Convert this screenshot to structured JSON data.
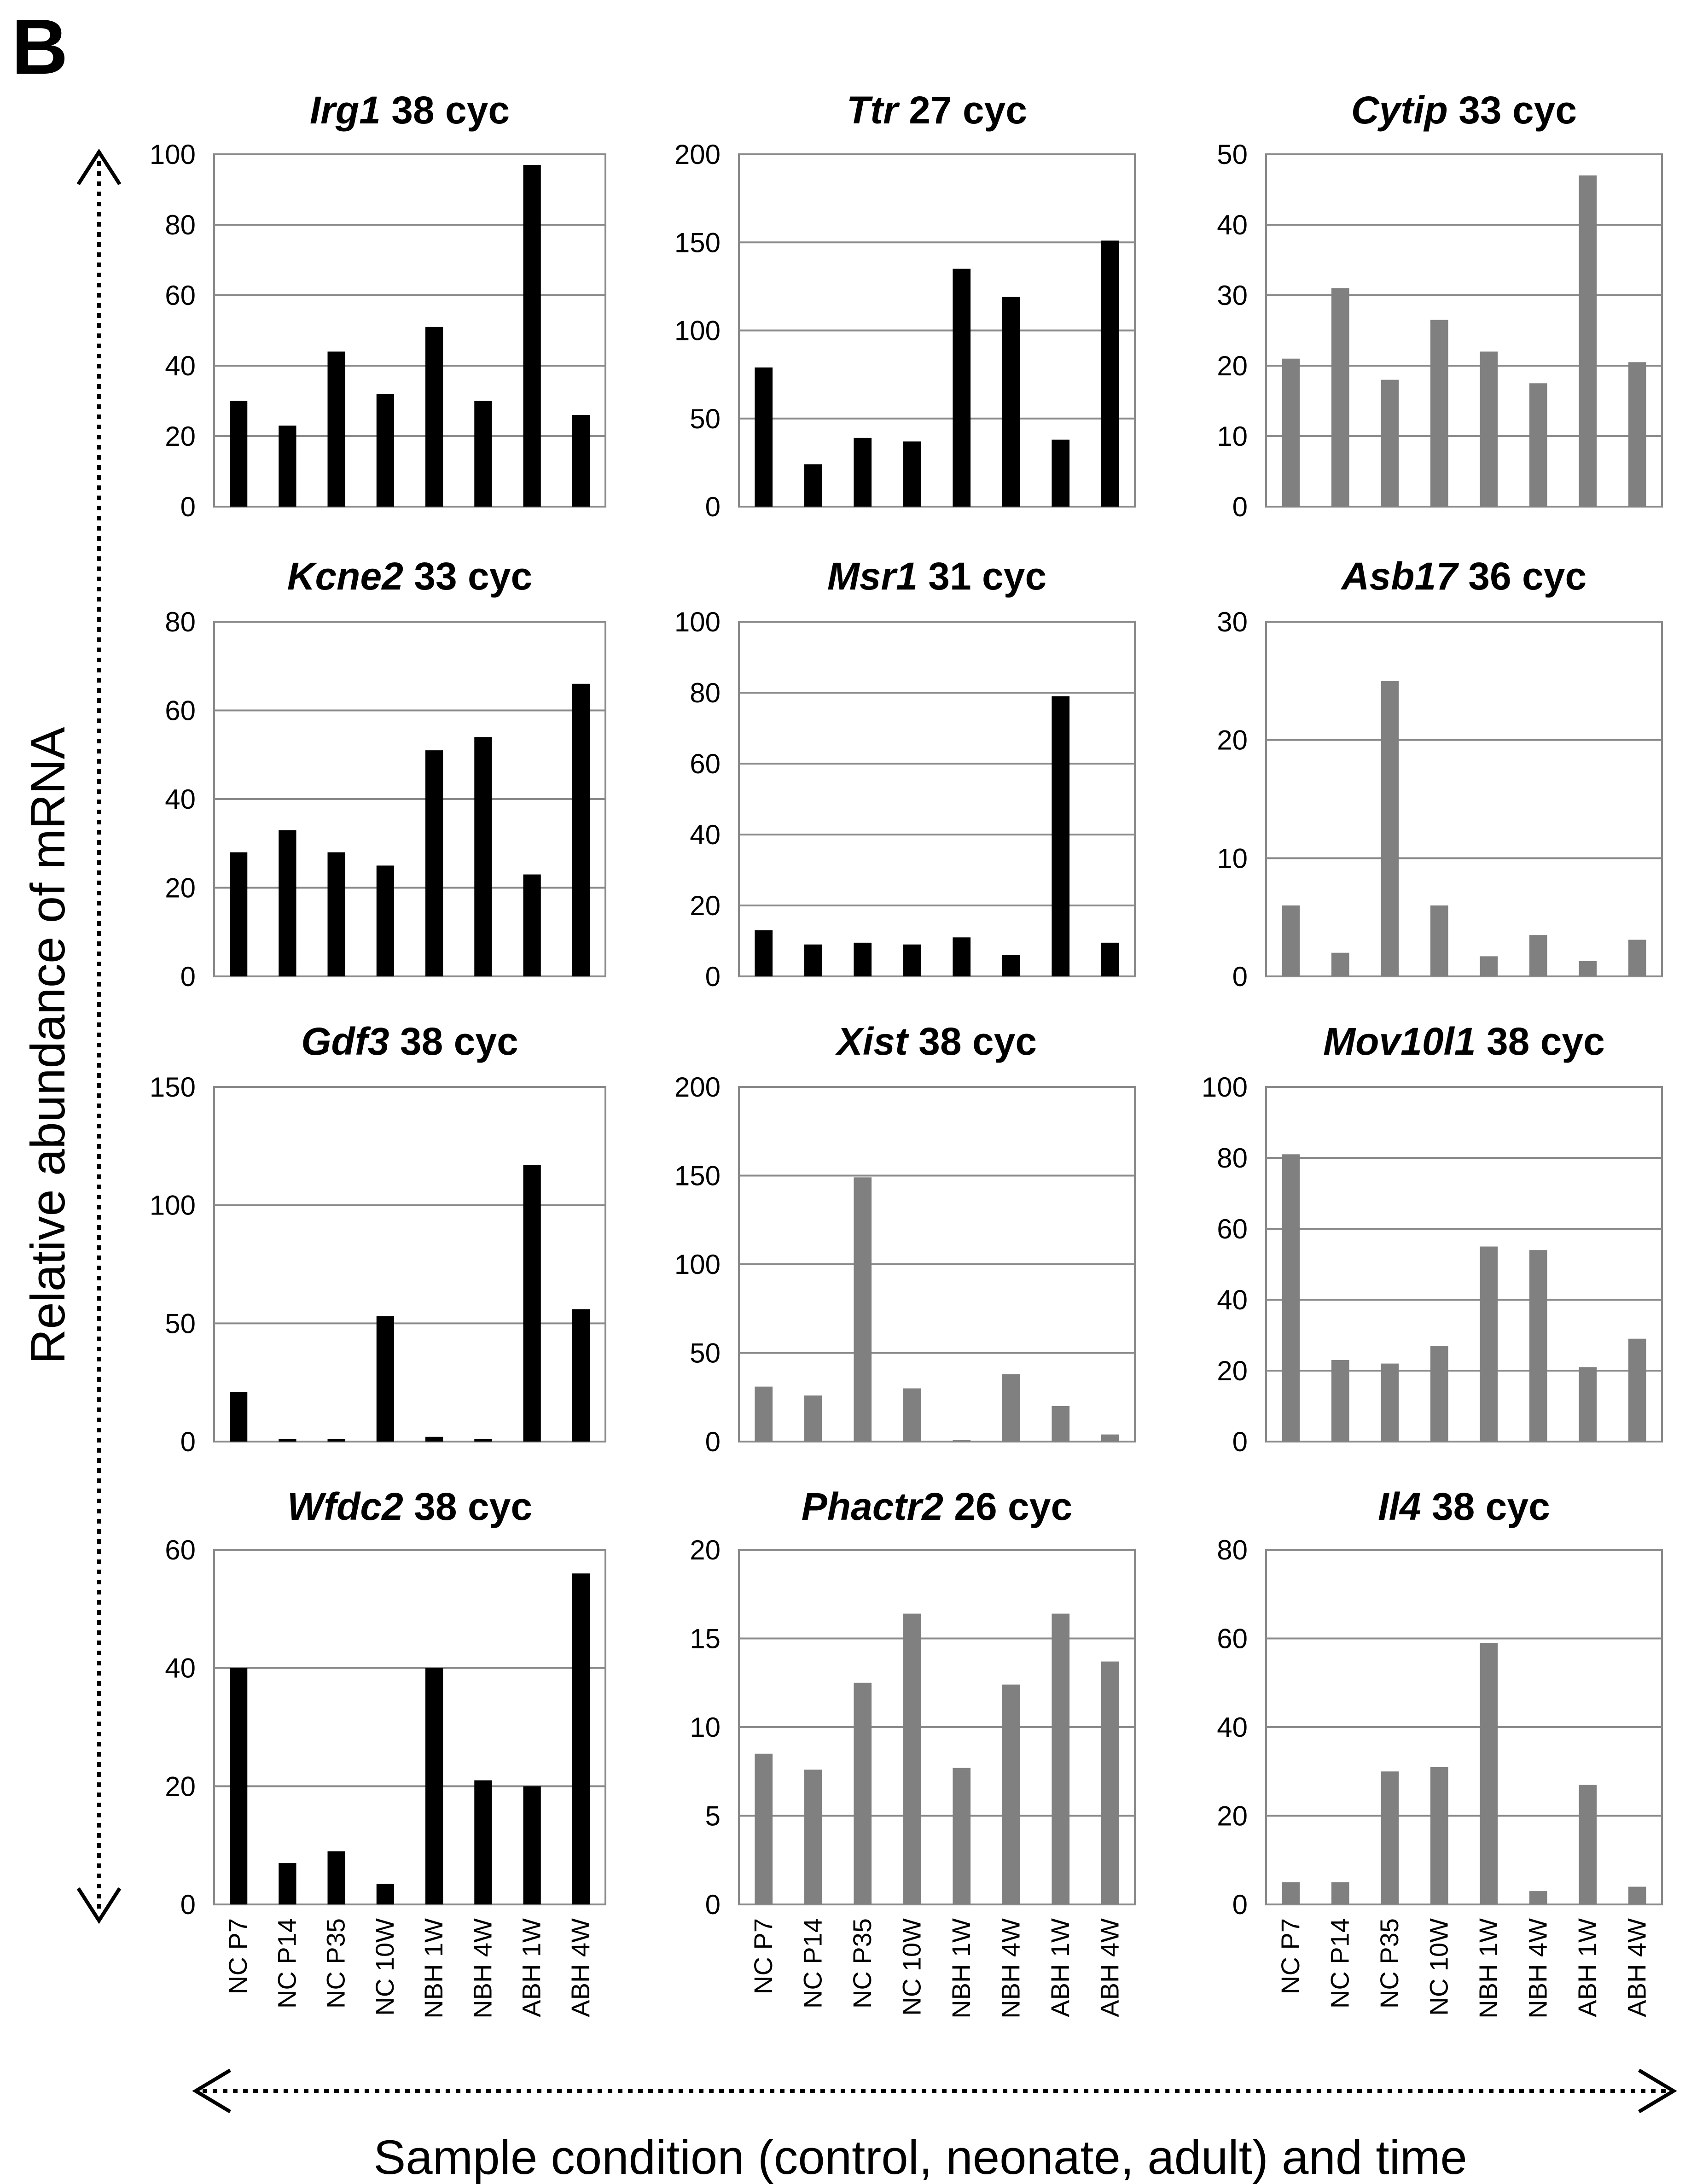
{
  "panel_label": "B",
  "y_axis_label": "Relative abundance  of mRNA",
  "x_axis_label": "Sample condition (control, neonate, adult) and time",
  "chart_data": [
    {
      "type": "bar",
      "title_gene": "Irg1",
      "title_suffix": " 38 cyc",
      "color": "#000000",
      "categories": [
        "NC P7",
        "NC P14",
        "NC P35",
        "NC 10W",
        "NBH 1W",
        "NBH 4W",
        "ABH 1W",
        "ABH 4W"
      ],
      "values": [
        30,
        23,
        44,
        32,
        51,
        30,
        97,
        26
      ],
      "ylim": [
        0,
        100
      ],
      "yticks": [
        0,
        20,
        40,
        60,
        80,
        100
      ],
      "grid": true
    },
    {
      "type": "bar",
      "title_gene": "Ttr",
      "title_suffix": " 27 cyc",
      "color": "#000000",
      "categories": [
        "NC P7",
        "NC P14",
        "NC P35",
        "NC 10W",
        "NBH 1W",
        "NBH 4W",
        "ABH 1W",
        "ABH 4W"
      ],
      "values": [
        79,
        24,
        39,
        37,
        135,
        119,
        38,
        151
      ],
      "ylim": [
        0,
        200
      ],
      "yticks": [
        0,
        50,
        100,
        150,
        200
      ],
      "grid": true
    },
    {
      "type": "bar",
      "title_gene": "Cytip",
      "title_suffix": " 33 cyc",
      "color": "#808080",
      "categories": [
        "NC P7",
        "NC P14",
        "NC P35",
        "NC 10W",
        "NBH 1W",
        "NBH 4W",
        "ABH 1W",
        "ABH 4W"
      ],
      "values": [
        21,
        31,
        18,
        26.5,
        22,
        17.5,
        47,
        20.5
      ],
      "ylim": [
        0,
        50
      ],
      "yticks": [
        0,
        10,
        20,
        30,
        40,
        50
      ],
      "grid": true
    },
    {
      "type": "bar",
      "title_gene": "Kcne2",
      "title_suffix": " 33 cyc",
      "color": "#000000",
      "categories": [
        "NC P7",
        "NC P14",
        "NC P35",
        "NC 10W",
        "NBH 1W",
        "NBH 4W",
        "ABH 1W",
        "ABH 4W"
      ],
      "values": [
        28,
        33,
        28,
        25,
        51,
        54,
        23,
        66
      ],
      "ylim": [
        0,
        80
      ],
      "yticks": [
        0,
        20,
        40,
        60,
        80
      ],
      "grid": true
    },
    {
      "type": "bar",
      "title_gene": "Msr1",
      "title_suffix": " 31 cyc",
      "color": "#000000",
      "categories": [
        "NC P7",
        "NC P14",
        "NC P35",
        "NC 10W",
        "NBH 1W",
        "NBH 4W",
        "ABH 1W",
        "ABH 4W"
      ],
      "values": [
        13,
        9,
        9.5,
        9,
        11,
        6,
        79,
        9.5
      ],
      "ylim": [
        0,
        100
      ],
      "yticks": [
        0,
        20,
        40,
        60,
        80,
        100
      ],
      "grid": true
    },
    {
      "type": "bar",
      "title_gene": "Asb17",
      "title_suffix": " 36 cyc",
      "color": "#808080",
      "categories": [
        "NC P7",
        "NC P14",
        "NC P35",
        "NC 10W",
        "NBH 1W",
        "NBH 4W",
        "ABH 1W",
        "ABH 4W"
      ],
      "values": [
        6,
        2,
        25,
        6,
        1.7,
        3.5,
        1.3,
        3.1
      ],
      "ylim": [
        0,
        30
      ],
      "yticks": [
        0,
        10,
        20,
        30
      ],
      "grid": true
    },
    {
      "type": "bar",
      "title_gene": "Gdf3",
      "title_suffix": " 38 cyc",
      "color": "#000000",
      "categories": [
        "NC P7",
        "NC P14",
        "NC P35",
        "NC 10W",
        "NBH 1W",
        "NBH 4W",
        "ABH 1W",
        "ABH 4W"
      ],
      "values": [
        21,
        1,
        1,
        53,
        2,
        1,
        117,
        56
      ],
      "ylim": [
        0,
        150
      ],
      "yticks": [
        0,
        50,
        100,
        150
      ],
      "grid": true
    },
    {
      "type": "bar",
      "title_gene": "Xist",
      "title_suffix": " 38 cyc",
      "color": "#808080",
      "categories": [
        "NC P7",
        "NC P14",
        "NC P35",
        "NC 10W",
        "NBH 1W",
        "NBH 4W",
        "ABH 1W",
        "ABH 4W"
      ],
      "values": [
        31,
        26,
        149,
        30,
        1,
        38,
        20,
        4
      ],
      "ylim": [
        0,
        200
      ],
      "yticks": [
        0,
        50,
        100,
        150,
        200
      ],
      "grid": true
    },
    {
      "type": "bar",
      "title_gene": "Mov10l1",
      "title_suffix": " 38 cyc",
      "color": "#808080",
      "categories": [
        "NC P7",
        "NC P14",
        "NC P35",
        "NC 10W",
        "NBH 1W",
        "NBH 4W",
        "ABH 1W",
        "ABH 4W"
      ],
      "values": [
        81,
        23,
        22,
        27,
        55,
        54,
        21,
        29
      ],
      "ylim": [
        0,
        100
      ],
      "yticks": [
        0,
        20,
        40,
        60,
        80,
        100
      ],
      "grid": true
    },
    {
      "type": "bar",
      "title_gene": "Wfdc2",
      "title_suffix": " 38 cyc",
      "color": "#000000",
      "categories": [
        "NC P7",
        "NC P14",
        "NC P35",
        "NC 10W",
        "NBH 1W",
        "NBH 4W",
        "ABH 1W",
        "ABH 4W"
      ],
      "values": [
        40,
        7,
        9,
        3.5,
        40,
        21,
        20,
        56
      ],
      "ylim": [
        0,
        60
      ],
      "yticks": [
        0,
        20,
        40,
        60
      ],
      "grid": true
    },
    {
      "type": "bar",
      "title_gene": "Phactr2",
      "title_suffix": " 26 cyc",
      "color": "#808080",
      "categories": [
        "NC P7",
        "NC P14",
        "NC P35",
        "NC 10W",
        "NBH 1W",
        "NBH 4W",
        "ABH 1W",
        "ABH 4W"
      ],
      "values": [
        8.5,
        7.6,
        12.5,
        16.4,
        7.7,
        12.4,
        16.4,
        13.7
      ],
      "ylim": [
        0,
        20
      ],
      "yticks": [
        0,
        5,
        10,
        15,
        20
      ],
      "grid": true
    },
    {
      "type": "bar",
      "title_gene": "Il4",
      "title_suffix": " 38 cyc",
      "color": "#808080",
      "categories": [
        "NC P7",
        "NC P14",
        "NC P35",
        "NC 10W",
        "NBH 1W",
        "NBH 4W",
        "ABH 1W",
        "ABH 4W"
      ],
      "values": [
        5,
        5,
        30,
        31,
        59,
        3,
        27,
        4
      ],
      "ylim": [
        0,
        80
      ],
      "yticks": [
        0,
        20,
        40,
        60,
        80
      ],
      "grid": true
    }
  ]
}
